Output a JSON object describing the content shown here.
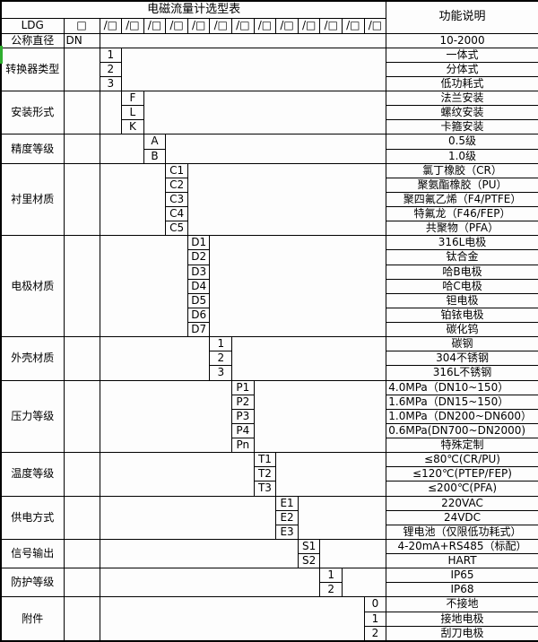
{
  "table": {
    "title": "电磁流量计选型表",
    "function_header": "功能说明",
    "model_prefix": "LDG",
    "base_box_symbol": "□",
    "segment_box_symbol": "/□",
    "segment_count": 13,
    "blocks": [
      {
        "label": "公称直径",
        "dn": "DN",
        "col": -1,
        "rows": [
          {
            "code": "",
            "desc": "10-2000"
          }
        ]
      },
      {
        "label": "转换器类型",
        "col": 0,
        "rows": [
          {
            "code": "1",
            "desc": "一体式"
          },
          {
            "code": "2",
            "desc": "分体式"
          },
          {
            "code": "3",
            "desc": "低功耗式"
          }
        ]
      },
      {
        "label": "安装形式",
        "col": 1,
        "rows": [
          {
            "code": "F",
            "desc": "法兰安装"
          },
          {
            "code": "L",
            "desc": "螺纹安装"
          },
          {
            "code": "K",
            "desc": "卡箍安装"
          }
        ]
      },
      {
        "label": "精度等级",
        "col": 2,
        "rows": [
          {
            "code": "A",
            "desc": "0.5级"
          },
          {
            "code": "B",
            "desc": "1.0级"
          }
        ]
      },
      {
        "label": "衬里材质",
        "col": 3,
        "rows": [
          {
            "code": "C1",
            "desc": "氯丁橡胶（CR）"
          },
          {
            "code": "C2",
            "desc": "聚氨酯橡胶（PU）"
          },
          {
            "code": "C3",
            "desc": "聚四氟乙烯（F4/PTFE）"
          },
          {
            "code": "C4",
            "desc": "特氟龙（F46/FEP）"
          },
          {
            "code": "C5",
            "desc": "共聚物（PFA）"
          }
        ]
      },
      {
        "label": "电极材质",
        "col": 4,
        "rows": [
          {
            "code": "D1",
            "desc": "316L电极"
          },
          {
            "code": "D2",
            "desc": "钛合金"
          },
          {
            "code": "D3",
            "desc": "哈B电极"
          },
          {
            "code": "D4",
            "desc": "哈C电极"
          },
          {
            "code": "D5",
            "desc": "钽电极"
          },
          {
            "code": "D6",
            "desc": "铂铱电极"
          },
          {
            "code": "D7",
            "desc": "碳化钨"
          }
        ]
      },
      {
        "label": "外壳材质",
        "col": 5,
        "rows": [
          {
            "code": "1",
            "desc": "碳钢"
          },
          {
            "code": "2",
            "desc": "304不锈钢"
          },
          {
            "code": "3",
            "desc": "316L不锈钢"
          }
        ]
      },
      {
        "label": "压力等级",
        "col": 6,
        "rows": [
          {
            "code": "P1",
            "desc": "4.0MPa（DN10~150）",
            "align": "left"
          },
          {
            "code": "P2",
            "desc": "1.6MPa（DN15~150）",
            "align": "left"
          },
          {
            "code": "P3",
            "desc": "1.0MPa（DN200~DN600）",
            "align": "left"
          },
          {
            "code": "P4",
            "desc": "0.6MPa(DN700~DN2000)",
            "align": "left"
          },
          {
            "code": "Pn",
            "desc": "特殊定制"
          }
        ]
      },
      {
        "label": "温度等级",
        "col": 7,
        "rows": [
          {
            "code": "T1",
            "desc": "≤80℃(CR/PU)"
          },
          {
            "code": "T2",
            "desc": "≤120℃(PTEP/FEP)"
          },
          {
            "code": "T3",
            "desc": "≤200℃(PFA)"
          }
        ]
      },
      {
        "label": "供电方式",
        "col": 8,
        "rows": [
          {
            "code": "E1",
            "desc": "220VAC"
          },
          {
            "code": "E2",
            "desc": "24VDC"
          },
          {
            "code": "E3",
            "desc": "锂电池（仅限低功耗式）"
          }
        ]
      },
      {
        "label": "信号输出",
        "col": 9,
        "rows": [
          {
            "code": "S1",
            "desc": "4-20mA+RS485（标配）"
          },
          {
            "code": "S2",
            "desc": "HART"
          }
        ]
      },
      {
        "label": "防护等级",
        "col": 10,
        "rows": [
          {
            "code": "1",
            "desc": "IP65"
          },
          {
            "code": "2",
            "desc": "IP68"
          }
        ]
      },
      {
        "label": "附件",
        "col": 12,
        "rows": [
          {
            "code": "0",
            "desc": "不接地"
          },
          {
            "code": "1",
            "desc": "接地电极"
          },
          {
            "code": "2",
            "desc": "刮刀电极"
          }
        ]
      }
    ]
  },
  "colors": {
    "border": "#000000",
    "background": "#fdfdfd",
    "text": "#000000",
    "scan_artifact_green": "#2fae2f"
  }
}
